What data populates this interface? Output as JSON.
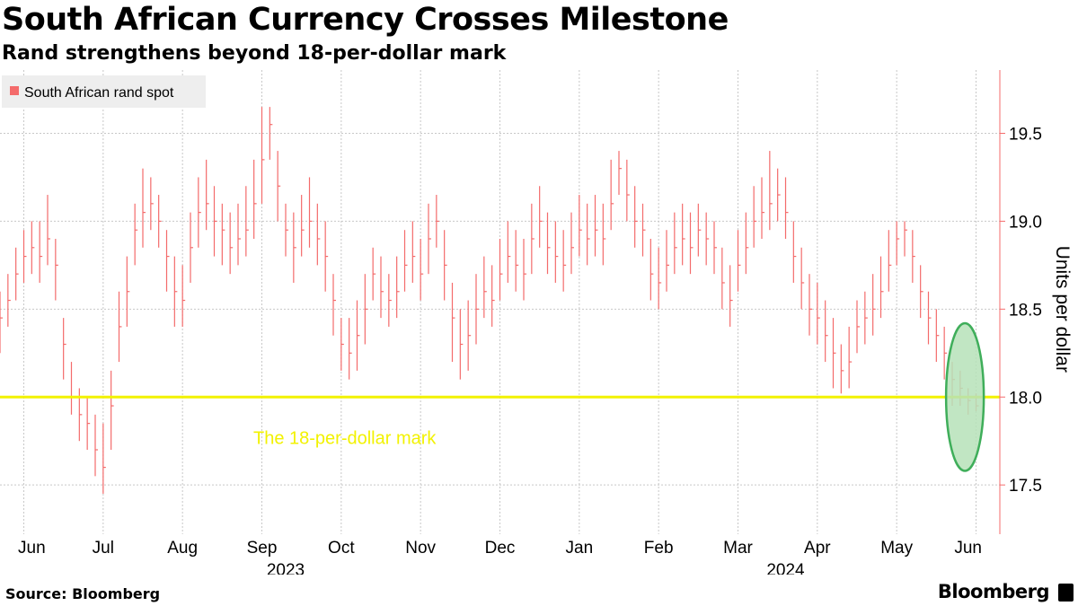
{
  "header": {
    "title": "South African Currency Crosses Milestone",
    "subtitle": "Rand strengthens beyond 18-per-dollar mark"
  },
  "footer": {
    "source": "Source: Bloomberg",
    "brand": "Bloomberg"
  },
  "colors": {
    "series": "#f46b6b",
    "reference_line": "#f2f200",
    "highlight_fill": "#b6e2b8",
    "highlight_stroke": "#3fae5a",
    "grid": "#c8c8c8",
    "axis": "#f46b6b"
  },
  "chart_data": {
    "type": "line",
    "title": "South African Currency Crosses Milestone",
    "subtitle": "Rand strengthens beyond 18-per-dollar mark",
    "ylabel": "Units per dollar",
    "xlabel": "",
    "ylim": [
      17.22,
      19.86
    ],
    "yticks": [
      17.5,
      18.0,
      18.5,
      19.0,
      19.5
    ],
    "grid": true,
    "legend": {
      "position": "top-left",
      "entries": [
        "South African rand spot"
      ]
    },
    "x_month_labels": [
      "Jun",
      "Jul",
      "Aug",
      "Sep",
      "Oct",
      "Nov",
      "Dec",
      "Jan",
      "Feb",
      "Mar",
      "Apr",
      "May",
      "Jun"
    ],
    "x_month_index": [
      0.4,
      1.3,
      2.3,
      3.3,
      4.3,
      5.3,
      6.3,
      7.3,
      8.3,
      9.3,
      10.3,
      11.3,
      12.2
    ],
    "x_year_labels": [
      "2023",
      "2024"
    ],
    "x_year_index": [
      3.6,
      9.9
    ],
    "x_range": [
      0,
      12.6
    ],
    "reference_line": {
      "value": 18.0,
      "label": "The 18-per-dollar mark"
    },
    "highlight": {
      "x_index": 12.16,
      "y_center": 18.0,
      "y_half_extent": 0.42,
      "note": "ellipse around latest crossing"
    },
    "series": [
      {
        "name": "South African rand spot",
        "kind": "ohlc",
        "x": [
          0,
          0.1,
          0.2,
          0.3,
          0.4,
          0.5,
          0.6,
          0.7,
          0.8,
          0.9,
          1.0,
          1.1,
          1.2,
          1.3,
          1.4,
          1.5,
          1.6,
          1.7,
          1.8,
          1.9,
          2.0,
          2.1,
          2.2,
          2.3,
          2.4,
          2.5,
          2.6,
          2.7,
          2.8,
          2.9,
          3.0,
          3.1,
          3.2,
          3.3,
          3.4,
          3.5,
          3.6,
          3.7,
          3.8,
          3.9,
          4.0,
          4.1,
          4.2,
          4.3,
          4.4,
          4.5,
          4.6,
          4.7,
          4.8,
          4.9,
          5.0,
          5.1,
          5.2,
          5.3,
          5.4,
          5.5,
          5.6,
          5.7,
          5.8,
          5.9,
          6.0,
          6.1,
          6.2,
          6.3,
          6.4,
          6.5,
          6.6,
          6.7,
          6.8,
          6.9,
          7.0,
          7.1,
          7.2,
          7.3,
          7.4,
          7.5,
          7.6,
          7.7,
          7.8,
          7.9,
          8.0,
          8.1,
          8.2,
          8.3,
          8.4,
          8.5,
          8.6,
          8.7,
          8.8,
          8.9,
          9.0,
          9.1,
          9.2,
          9.3,
          9.4,
          9.5,
          9.6,
          9.7,
          9.8,
          9.9,
          10.0,
          10.1,
          10.2,
          10.3,
          10.4,
          10.5,
          10.6,
          10.7,
          10.8,
          10.9,
          11.0,
          11.1,
          11.2,
          11.3,
          11.4,
          11.5,
          11.6,
          11.7,
          11.8,
          11.9,
          12.0,
          12.1,
          12.2,
          12.3
        ],
        "values": [
          18.45,
          18.55,
          18.7,
          18.8,
          18.85,
          18.8,
          18.9,
          18.75,
          18.3,
          18.0,
          17.9,
          17.85,
          17.7,
          17.6,
          17.95,
          18.4,
          18.6,
          18.95,
          19.05,
          19.1,
          19.0,
          18.8,
          18.6,
          18.55,
          18.85,
          19.05,
          19.1,
          19.0,
          18.95,
          18.85,
          18.9,
          18.95,
          19.1,
          19.35,
          19.55,
          19.2,
          18.95,
          18.85,
          18.95,
          19.0,
          18.9,
          18.8,
          18.55,
          18.3,
          18.25,
          18.35,
          18.5,
          18.7,
          18.6,
          18.55,
          18.6,
          18.75,
          18.8,
          18.7,
          18.9,
          19.0,
          18.75,
          18.45,
          18.3,
          18.35,
          18.5,
          18.6,
          18.55,
          18.7,
          18.8,
          18.75,
          18.7,
          18.9,
          19.0,
          18.85,
          18.8,
          18.75,
          18.85,
          18.95,
          18.9,
          18.95,
          18.9,
          19.1,
          19.3,
          19.15,
          19.0,
          18.95,
          18.7,
          18.65,
          18.75,
          18.85,
          18.9,
          18.85,
          18.95,
          18.9,
          18.85,
          18.65,
          18.55,
          18.75,
          18.85,
          19.0,
          19.05,
          19.1,
          19.15,
          19.05,
          18.8,
          18.65,
          18.5,
          18.45,
          18.35,
          18.25,
          18.15,
          18.2,
          18.4,
          18.45,
          18.5,
          18.6,
          18.75,
          18.9,
          18.95,
          18.8,
          18.6,
          18.45,
          18.35,
          18.25,
          18.1,
          18.05,
          17.98,
          17.95
        ],
        "highs": [
          18.6,
          18.7,
          18.85,
          18.95,
          19.0,
          19.0,
          19.15,
          18.9,
          18.45,
          18.2,
          18.05,
          18.0,
          17.9,
          17.85,
          18.15,
          18.6,
          18.8,
          19.1,
          19.3,
          19.25,
          19.15,
          18.95,
          18.8,
          18.75,
          19.05,
          19.25,
          19.35,
          19.2,
          19.1,
          19.05,
          19.1,
          19.2,
          19.35,
          19.65,
          19.65,
          19.4,
          19.1,
          19.05,
          19.15,
          19.25,
          19.1,
          19.0,
          18.7,
          18.45,
          18.45,
          18.55,
          18.7,
          18.85,
          18.8,
          18.7,
          18.8,
          18.95,
          19.0,
          18.9,
          19.1,
          19.15,
          18.95,
          18.65,
          18.5,
          18.55,
          18.7,
          18.8,
          18.75,
          18.9,
          19.0,
          18.95,
          18.9,
          19.1,
          19.2,
          19.05,
          19.0,
          18.95,
          19.05,
          19.15,
          19.1,
          19.15,
          19.1,
          19.35,
          19.4,
          19.35,
          19.2,
          19.1,
          18.9,
          18.85,
          18.95,
          19.05,
          19.1,
          19.05,
          19.1,
          19.05,
          19.0,
          18.85,
          18.75,
          18.95,
          19.05,
          19.2,
          19.25,
          19.4,
          19.3,
          19.25,
          19.0,
          18.85,
          18.7,
          18.65,
          18.55,
          18.45,
          18.3,
          18.4,
          18.55,
          18.6,
          18.7,
          18.8,
          18.95,
          19.0,
          19.0,
          18.95,
          18.75,
          18.6,
          18.5,
          18.4,
          18.2,
          18.15,
          18.05,
          18.02
        ],
        "lows": [
          18.25,
          18.4,
          18.55,
          18.65,
          18.7,
          18.65,
          18.75,
          18.55,
          18.1,
          17.9,
          17.75,
          17.7,
          17.55,
          17.45,
          17.7,
          18.2,
          18.4,
          18.75,
          18.85,
          18.95,
          18.85,
          18.6,
          18.4,
          18.4,
          18.65,
          18.85,
          18.95,
          18.8,
          18.75,
          18.7,
          18.75,
          18.8,
          18.9,
          19.1,
          19.35,
          19.0,
          18.8,
          18.65,
          18.8,
          18.85,
          18.75,
          18.6,
          18.35,
          18.15,
          18.1,
          18.15,
          18.3,
          18.55,
          18.45,
          18.4,
          18.45,
          18.6,
          18.65,
          18.55,
          18.7,
          18.85,
          18.55,
          18.2,
          18.1,
          18.15,
          18.3,
          18.45,
          18.4,
          18.55,
          18.65,
          18.6,
          18.55,
          18.7,
          18.85,
          18.7,
          18.65,
          18.6,
          18.7,
          18.8,
          18.75,
          18.8,
          18.75,
          18.95,
          19.15,
          19.0,
          18.85,
          18.8,
          18.55,
          18.5,
          18.6,
          18.7,
          18.75,
          18.7,
          18.8,
          18.75,
          18.7,
          18.5,
          18.4,
          18.6,
          18.7,
          18.85,
          18.9,
          18.95,
          19.0,
          18.9,
          18.65,
          18.5,
          18.35,
          18.3,
          18.2,
          18.05,
          18.02,
          18.05,
          18.25,
          18.3,
          18.35,
          18.45,
          18.6,
          18.75,
          18.8,
          18.65,
          18.45,
          18.3,
          18.2,
          18.1,
          17.95,
          17.95,
          17.9,
          17.92
        ]
      }
    ]
  }
}
